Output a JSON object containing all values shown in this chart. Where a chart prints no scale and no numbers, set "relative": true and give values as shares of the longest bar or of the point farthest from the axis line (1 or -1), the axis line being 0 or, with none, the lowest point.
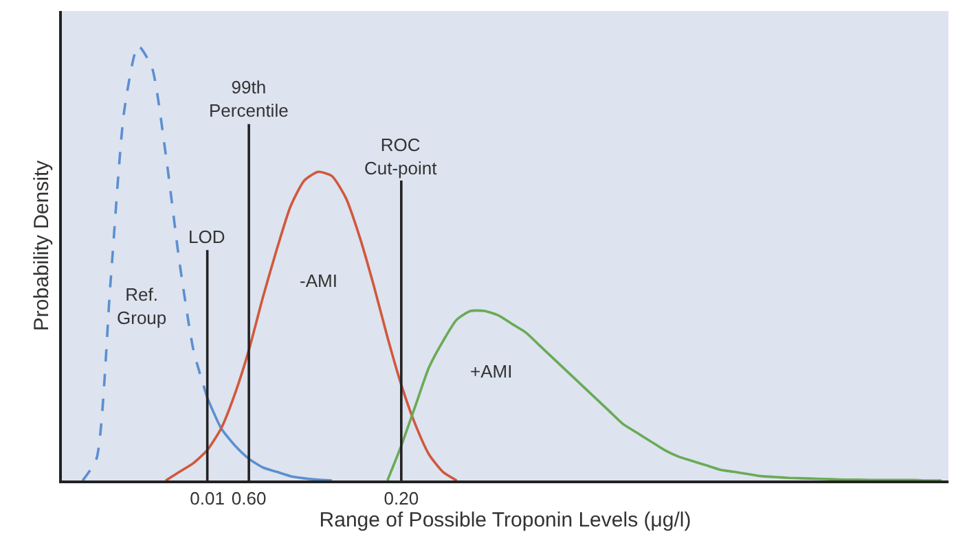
{
  "chart_data": {
    "type": "line",
    "relative": true,
    "xlabel": "Range of Possible Troponin Levels (μg/l)",
    "ylabel": "Probability Density",
    "categories": [
      null,
      null,
      null,
      null,
      null,
      null,
      null,
      null,
      null,
      null,
      "0.01",
      null,
      null,
      "0.60",
      null,
      null,
      null,
      null,
      null,
      null,
      null,
      null,
      null,
      null,
      "0.20",
      null,
      null,
      null,
      null,
      null,
      null,
      null,
      null,
      null,
      null,
      null,
      null,
      null,
      null,
      null,
      null,
      null,
      null,
      null,
      null,
      null,
      null,
      null,
      null,
      null,
      null,
      null,
      null,
      null,
      null,
      null,
      null,
      null,
      null,
      null,
      null,
      null,
      null,
      null
    ],
    "series": [
      {
        "name": "Ref. Group",
        "color": "#5b8fd0",
        "line_style": "dashed",
        "values": [
          null,
          0,
          0.05,
          0.45,
          0.85,
          1.0,
          0.95,
          0.75,
          0.5,
          0.3,
          0.19,
          null,
          null,
          null,
          null,
          null,
          null,
          null,
          null,
          null,
          null,
          null,
          null,
          null,
          null,
          null,
          null,
          null,
          null,
          null,
          null,
          null,
          null,
          null,
          null,
          null,
          null,
          null,
          null,
          null,
          null,
          null,
          null,
          null,
          null,
          null,
          null,
          null,
          null,
          null,
          null,
          null,
          null,
          null,
          null,
          null,
          null,
          null,
          null,
          null,
          null,
          null,
          null,
          null
        ]
      },
      {
        "color": "#5b8fd0",
        "line_style": "solid",
        "values": [
          null,
          null,
          null,
          null,
          null,
          null,
          null,
          null,
          null,
          null,
          0.19,
          0.12,
          0.08,
          0.05,
          0.03,
          0.02,
          0.01,
          0.005,
          0.002,
          0,
          null,
          null,
          null,
          null,
          null,
          null,
          null,
          null,
          null,
          null,
          null,
          null,
          null,
          null,
          null,
          null,
          null,
          null,
          null,
          null,
          null,
          null,
          null,
          null,
          null,
          null,
          null,
          null,
          null,
          null,
          null,
          null,
          null,
          null,
          null,
          null,
          null,
          null,
          null,
          null,
          null,
          null,
          null,
          null
        ]
      },
      {
        "name": "-AMI",
        "color": "#d0583c",
        "line_style": "solid",
        "values": [
          null,
          null,
          null,
          null,
          null,
          null,
          null,
          0,
          0.02,
          0.04,
          0.07,
          0.12,
          0.2,
          0.3,
          0.42,
          0.53,
          0.63,
          0.69,
          0.71,
          0.7,
          0.65,
          0.56,
          0.45,
          0.33,
          0.22,
          0.13,
          0.06,
          0.02,
          0,
          null,
          null,
          null,
          null,
          null,
          null,
          null,
          null,
          null,
          null,
          null,
          null,
          null,
          null,
          null,
          null,
          null,
          null,
          null,
          null,
          null,
          null,
          null,
          null,
          null,
          null,
          null,
          null,
          null,
          null,
          null,
          null,
          null,
          null,
          null
        ]
      },
      {
        "name": "+AMI",
        "color": "#6aaa55",
        "line_style": "solid",
        "values": [
          null,
          null,
          null,
          null,
          null,
          null,
          null,
          null,
          null,
          null,
          null,
          null,
          null,
          null,
          null,
          null,
          null,
          null,
          null,
          null,
          null,
          null,
          null,
          0,
          0.08,
          0.17,
          0.26,
          0.32,
          0.37,
          0.39,
          0.39,
          0.38,
          0.36,
          0.34,
          0.31,
          0.28,
          0.25,
          0.22,
          0.19,
          0.16,
          0.13,
          0.11,
          0.09,
          0.07,
          0.055,
          0.045,
          0.035,
          0.025,
          0.02,
          0.015,
          0.01,
          0.008,
          0.006,
          0.005,
          0.004,
          0.003,
          0.002,
          0.002,
          0.001,
          0.001,
          0.001,
          0.001,
          0,
          0
        ]
      }
    ],
    "ref_lines": [
      {
        "axis": "x",
        "value": "0.01",
        "label": "LOD",
        "color": "#222222"
      },
      {
        "axis": "x",
        "value": "0.60",
        "label": "99th Percentile",
        "color": "#222222"
      },
      {
        "axis": "x",
        "value": "0.20",
        "label": "ROC Cut-point",
        "color": "#222222"
      }
    ],
    "legend": false,
    "grid": false,
    "marker": "none"
  }
}
